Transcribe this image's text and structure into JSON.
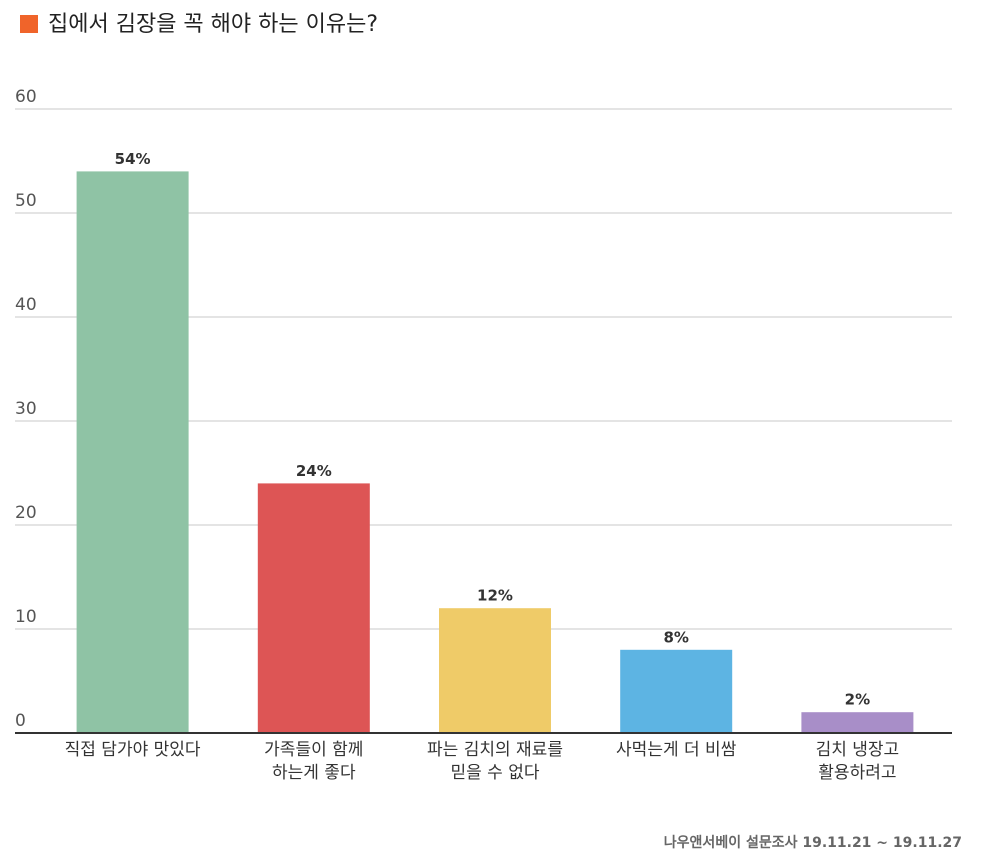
{
  "chart_data": {
    "type": "bar",
    "title": "집에서 김장을 꼭 해야 하는 이유는?",
    "categories": [
      [
        "직접 담가야 맛있다"
      ],
      [
        "가족들이 함께",
        "하는게 좋다"
      ],
      [
        "파는 김치의 재료를",
        "믿을 수 없다"
      ],
      [
        "사먹는게 더 비쌈"
      ],
      [
        "김치 냉장고",
        "활용하려고"
      ]
    ],
    "values": [
      54,
      24,
      12,
      8,
      2
    ],
    "value_labels": [
      "54%",
      "24%",
      "12%",
      "8%",
      "2%"
    ],
    "colors": [
      "#8fc3a5",
      "#dd5555",
      "#efcb68",
      "#5db4e3",
      "#a88ec8"
    ],
    "ylim": [
      0,
      60
    ],
    "yticks": [
      0,
      10,
      20,
      30,
      40,
      50,
      60
    ],
    "grid": true,
    "source": "나우앤서베이 설문조사 19.11.21 ~ 19.11.27"
  }
}
